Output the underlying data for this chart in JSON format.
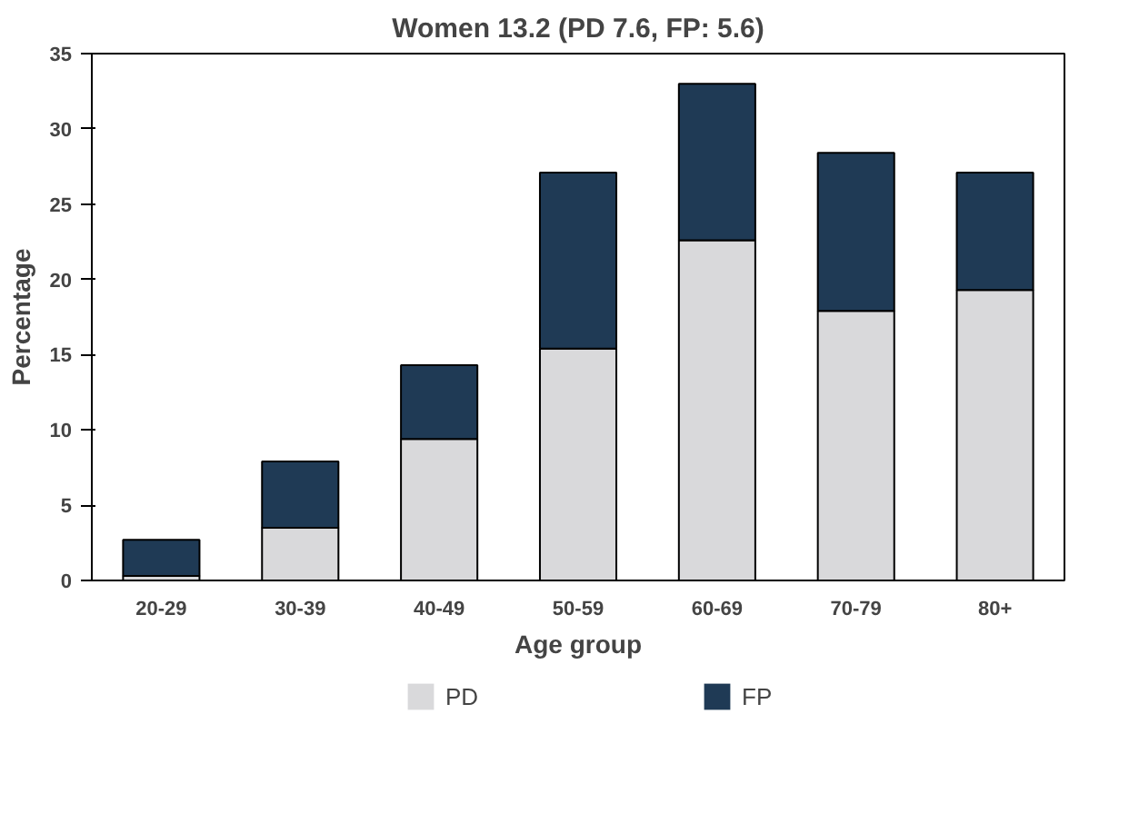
{
  "chart_data": {
    "type": "bar",
    "title": "Women 13.2 (PD 7.6, FP: 5.6)",
    "xlabel": "Age group",
    "ylabel": "Percentage",
    "categories": [
      "20-29",
      "30-39",
      "40-49",
      "50-59",
      "60-69",
      "70-79",
      "80+"
    ],
    "stacked": true,
    "series": [
      {
        "name": "PD",
        "color": "#d9d9db",
        "values": [
          0.3,
          3.5,
          9.4,
          15.4,
          22.6,
          17.9,
          19.3
        ]
      },
      {
        "name": "FP",
        "color": "#1f3a55",
        "values": [
          2.4,
          4.4,
          4.9,
          11.7,
          10.4,
          10.5,
          7.8
        ]
      }
    ],
    "ylim": [
      0,
      35
    ],
    "yticks": [
      0,
      5,
      10,
      15,
      20,
      25,
      30,
      35
    ],
    "grid": false,
    "legend": "bottom"
  }
}
